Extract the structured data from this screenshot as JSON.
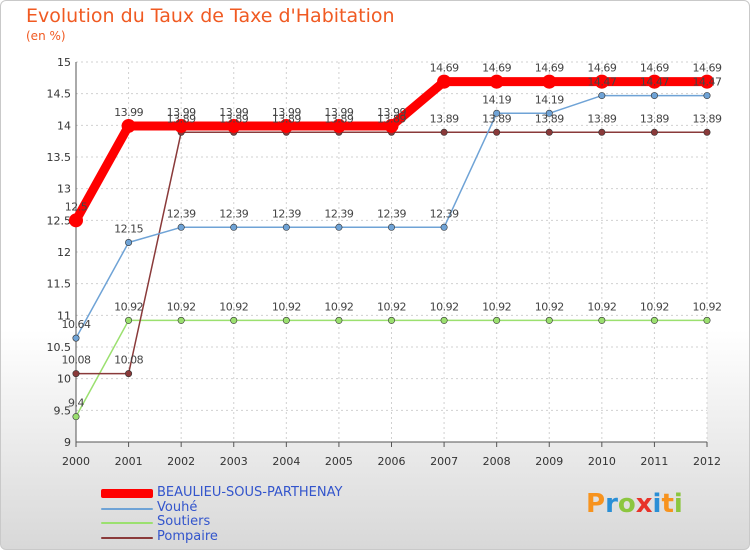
{
  "header": {
    "title": "Evolution du Taux de Taxe d'Habitation",
    "unit": "(en %)"
  },
  "logo": {
    "letters": [
      "P",
      "r",
      "o",
      "x",
      "i",
      "t",
      "i"
    ],
    "colors": [
      "#f7931e",
      "#2a8fd6",
      "#8cc63f",
      "#e8332a",
      "#2a8fd6",
      "#f7931e",
      "#8cc63f"
    ]
  },
  "chart_data": {
    "type": "line",
    "x": [
      "2000",
      "2001",
      "2002",
      "2003",
      "2004",
      "2005",
      "2006",
      "2007",
      "2008",
      "2009",
      "2010",
      "2011",
      "2012"
    ],
    "ylim": [
      9,
      15
    ],
    "yticks": [
      "9",
      "9.5",
      "10",
      "10.5",
      "11",
      "11.5",
      "12",
      "12.5",
      "13",
      "13.5",
      "14",
      "14.5",
      "15"
    ],
    "grid": true,
    "legend_position": "bottom-left",
    "series": [
      {
        "name": "BEAULIEU-SOUS-PARTHENAY",
        "color": "#ff0000",
        "values": [
          12.5,
          13.99,
          13.99,
          13.99,
          13.99,
          13.99,
          13.99,
          14.69,
          14.69,
          14.69,
          14.69,
          14.69,
          14.69
        ],
        "labels": [
          "12.5",
          "13.99",
          "13.99",
          "13.99",
          "13.99",
          "13.99",
          "13.99",
          "14.69",
          "14.69",
          "14.69",
          "14.69",
          "14.69",
          "14.69"
        ]
      },
      {
        "name": "Vouhé",
        "color": "#6fa3d6",
        "values": [
          10.64,
          12.15,
          12.39,
          12.39,
          12.39,
          12.39,
          12.39,
          12.39,
          14.19,
          14.19,
          14.47,
          14.47,
          14.47
        ],
        "labels": [
          "10.64",
          "12.15",
          "12.39",
          "12.39",
          "12.39",
          "12.39",
          "12.39",
          "12.39",
          "14.19",
          "14.19",
          "14.47",
          "14.47",
          "14.47"
        ]
      },
      {
        "name": "Soutiers",
        "color": "#9be06f",
        "values": [
          9.4,
          10.92,
          10.92,
          10.92,
          10.92,
          10.92,
          10.92,
          10.92,
          10.92,
          10.92,
          10.92,
          10.92,
          10.92
        ],
        "labels": [
          "9.4",
          "10.92",
          "10.92",
          "10.92",
          "10.92",
          "10.92",
          "10.92",
          "10.92",
          "10.92",
          "10.92",
          "10.92",
          "10.92",
          "10.92"
        ]
      },
      {
        "name": "Pompaire",
        "color": "#8a3a3a",
        "values": [
          10.08,
          10.08,
          13.89,
          13.89,
          13.89,
          13.89,
          13.89,
          13.89,
          13.89,
          13.89,
          13.89,
          13.89,
          13.89
        ],
        "labels": [
          "10.08",
          "10.08",
          "13.89",
          "13.89",
          "13.89",
          "13.89",
          "13.89",
          "13.89",
          "13.89",
          "13.89",
          "13.89",
          "13.89",
          "13.89"
        ]
      }
    ]
  }
}
